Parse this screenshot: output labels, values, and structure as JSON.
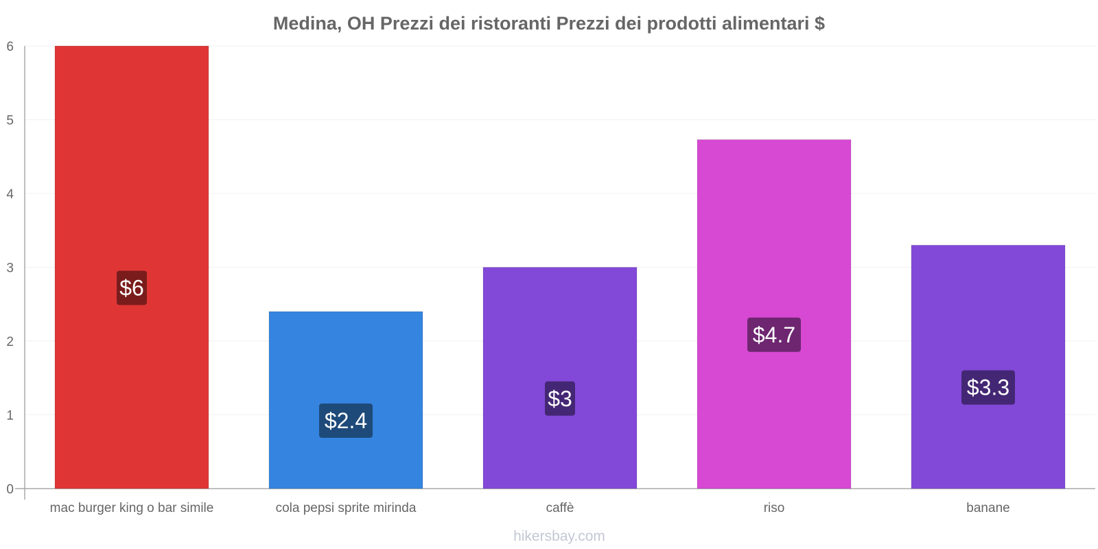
{
  "chart_data": {
    "type": "bar",
    "title": "Medina, OH Prezzi dei ristoranti Prezzi dei prodotti alimentari $",
    "categories": [
      "mac burger king o bar simile",
      "cola pepsi sprite mirinda",
      "caffè",
      "riso",
      "banane"
    ],
    "values": [
      6,
      2.4,
      3,
      4.73,
      3.3
    ],
    "value_labels": [
      "$6",
      "$2.4",
      "$3",
      "$4.7",
      "$3.3"
    ],
    "bar_colors": [
      "#e03535",
      "#3584e0",
      "#8249d8",
      "#d749d3",
      "#8249d8"
    ],
    "label_bg_colors": [
      "#7a1c1c",
      "#1e4a7a",
      "#442774",
      "#6e2670",
      "#442774"
    ],
    "ylim": [
      0,
      6
    ],
    "yticks": [
      "0",
      "1",
      "2",
      "3",
      "4",
      "5",
      "6"
    ],
    "xlabel": "",
    "ylabel": "",
    "grid": true,
    "axis_color": "#aaaaaa",
    "grid_color": "#f2f2f2"
  },
  "footer": {
    "watermark": "hikersbay.com"
  }
}
